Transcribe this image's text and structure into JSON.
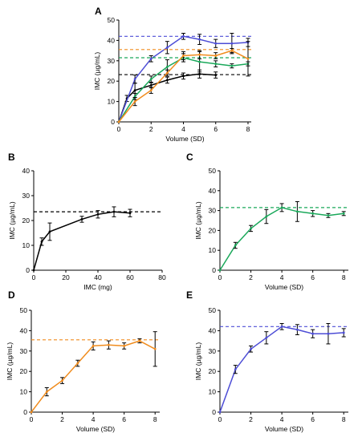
{
  "colors": {
    "A": "#000000",
    "B": "#000000",
    "C": "#1aa85a",
    "D": "#f08c1e",
    "E": "#4d4dd6"
  },
  "chart_data": [
    {
      "panel": "A",
      "type": "line",
      "xlabel": "Volume (SD)",
      "ylabel": "IMC (µg/mL)",
      "xlim": [
        0,
        8.2
      ],
      "ylim": [
        0,
        50
      ],
      "xticks": [
        0,
        2,
        4,
        6,
        8
      ],
      "yticks": [
        0,
        10,
        20,
        30,
        40,
        50
      ],
      "series": [
        {
          "color": "#000000",
          "x": [
            0,
            0.5,
            1,
            2,
            3,
            4,
            5,
            6
          ],
          "y": [
            0,
            11.5,
            15.5,
            18,
            20.5,
            22.5,
            23.5,
            23
          ],
          "err": [
            0,
            1.5,
            3.5,
            1.2,
            1.5,
            1.5,
            2,
            1.5
          ],
          "threshold": 23.2
        },
        {
          "color": "#4d4dd6",
          "x": [
            0,
            1,
            2,
            3,
            4,
            5,
            6,
            7,
            8
          ],
          "y": [
            0,
            21,
            31,
            36.5,
            42,
            40.5,
            38.5,
            38.5,
            39
          ],
          "err": [
            0,
            2,
            1.5,
            3,
            1.5,
            2.5,
            2,
            5,
            2
          ],
          "threshold": 42
        },
        {
          "color": "#1aa85a",
          "x": [
            0,
            1,
            2,
            3,
            4,
            5,
            6,
            7,
            8
          ],
          "y": [
            0,
            12.5,
            21,
            27,
            31.5,
            29.5,
            28.5,
            27.5,
            28.5
          ],
          "err": [
            0,
            1.5,
            1.5,
            3.5,
            2,
            5,
            1.5,
            1,
            1
          ],
          "threshold": 31.5
        },
        {
          "color": "#f08c1e",
          "x": [
            0,
            1,
            2,
            3,
            4,
            5,
            6,
            7,
            8
          ],
          "y": [
            0,
            10,
            15.5,
            24,
            32.5,
            33,
            32.5,
            35,
            31
          ],
          "err": [
            0,
            2,
            1.5,
            1.5,
            2,
            2,
            1.5,
            1,
            8.5
          ],
          "threshold": 35.5
        }
      ]
    },
    {
      "panel": "B",
      "type": "line",
      "xlabel": "IMC (mg)",
      "ylabel": "IMC (µg/mL)",
      "xlim": [
        0,
        80
      ],
      "ylim": [
        0,
        40
      ],
      "xticks": [
        0,
        20,
        40,
        60,
        80
      ],
      "yticks": [
        0,
        10,
        20,
        30,
        40
      ],
      "series": [
        {
          "color": "#000000",
          "x": [
            0,
            5,
            10,
            30,
            40,
            50,
            60
          ],
          "y": [
            0,
            11.5,
            15.5,
            20.5,
            22.5,
            23.5,
            23
          ],
          "err": [
            0,
            1.5,
            3.5,
            1.2,
            1.5,
            2,
            1.5
          ],
          "threshold": 23.5
        }
      ]
    },
    {
      "panel": "C",
      "type": "line",
      "xlabel": "Volume (SD)",
      "ylabel": "IMC (µg/mL)",
      "xlim": [
        0,
        8.3
      ],
      "ylim": [
        0,
        50
      ],
      "xticks": [
        0,
        2,
        4,
        6,
        8
      ],
      "yticks": [
        0,
        10,
        20,
        30,
        40,
        50
      ],
      "series": [
        {
          "color": "#1aa85a",
          "x": [
            0,
            1,
            2,
            3,
            4,
            5,
            6,
            7,
            8
          ],
          "y": [
            0,
            12.5,
            21,
            27,
            31.5,
            29.5,
            28.5,
            27.5,
            28.5
          ],
          "err": [
            0,
            1.5,
            1.5,
            3.5,
            2,
            5,
            1.5,
            1,
            1
          ],
          "threshold": 31.5
        }
      ]
    },
    {
      "panel": "D",
      "type": "line",
      "xlabel": "Volume (SD)",
      "ylabel": "IMC (µg/mL)",
      "xlim": [
        0,
        8.3
      ],
      "ylim": [
        0,
        50
      ],
      "xticks": [
        0,
        2,
        4,
        6,
        8
      ],
      "yticks": [
        0,
        10,
        20,
        30,
        40,
        50
      ],
      "series": [
        {
          "color": "#f08c1e",
          "x": [
            0,
            1,
            2,
            3,
            4,
            5,
            6,
            7,
            8
          ],
          "y": [
            0,
            10,
            15.5,
            24,
            32.5,
            33,
            32.5,
            35,
            31
          ],
          "err": [
            0,
            2,
            1.5,
            1.5,
            2,
            2,
            1.5,
            1,
            8.5
          ],
          "threshold": 35.5
        }
      ]
    },
    {
      "panel": "E",
      "type": "line",
      "xlabel": "Volume (SD)",
      "ylabel": "IMC (µg/mL)",
      "xlim": [
        0,
        8.3
      ],
      "ylim": [
        0,
        50
      ],
      "xticks": [
        0,
        2,
        4,
        6,
        8
      ],
      "yticks": [
        0,
        10,
        20,
        30,
        40,
        50
      ],
      "series": [
        {
          "color": "#4d4dd6",
          "x": [
            0,
            1,
            2,
            3,
            4,
            5,
            6,
            7,
            8
          ],
          "y": [
            0,
            21,
            31,
            36.5,
            42,
            40.5,
            38.5,
            38.5,
            39
          ],
          "err": [
            0,
            2,
            1.5,
            3,
            1.5,
            2.5,
            2,
            5,
            2
          ],
          "threshold": 42
        }
      ]
    }
  ]
}
